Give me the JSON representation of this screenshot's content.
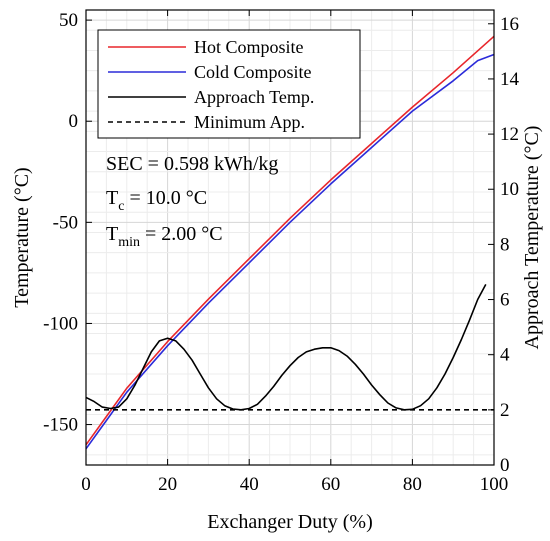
{
  "chart_data": {
    "type": "line",
    "xlabel": "Exchanger Duty (%)",
    "ylabel_left": "Temperature (°C)",
    "ylabel_right": "Approach Temperature (°C)",
    "xlim": [
      0,
      100
    ],
    "ylim_left": [
      -170,
      55
    ],
    "ylim_right": [
      0,
      16.5
    ],
    "grid": true,
    "legend_position": "top-left",
    "x_ticks": [
      0,
      20,
      40,
      60,
      80,
      100
    ],
    "y_left_ticks": [
      -150,
      -100,
      -50,
      0,
      50
    ],
    "y_right_ticks": [
      0,
      2,
      4,
      6,
      8,
      10,
      12,
      14,
      16
    ],
    "x_tick_labels": [
      "0",
      "20",
      "40",
      "60",
      "80",
      "100"
    ],
    "y_left_tick_labels": [
      "-150",
      "-100",
      "-50",
      "0",
      "50"
    ],
    "y_right_tick_labels": [
      "0",
      "2",
      "4",
      "6",
      "8",
      "10",
      "12",
      "14",
      "16"
    ],
    "annotations": {
      "sec": "SEC = 0.598 kWh/kg",
      "tc_main": "T",
      "tc_sub": "c",
      "tc_rest": " =  10.0 °C",
      "tmin_main": "T",
      "tmin_sub": "min",
      "tmin_rest": " =  2.00 °C"
    },
    "series": [
      {
        "name": "Hot Composite",
        "axis": "left",
        "color": "#e8262b",
        "style": "solid",
        "x": [
          0,
          5,
          10,
          20,
          30,
          40,
          50,
          60,
          70,
          80,
          90,
          100
        ],
        "y": [
          -160,
          -146,
          -132,
          -109,
          -88,
          -68,
          -48,
          -29,
          -11,
          7,
          24,
          42
        ]
      },
      {
        "name": "Cold Composite",
        "axis": "left",
        "color": "#2b2bd9",
        "style": "solid",
        "x": [
          0,
          5,
          10,
          20,
          30,
          40,
          50,
          60,
          70,
          80,
          90,
          96,
          100
        ],
        "y": [
          -162,
          -148,
          -134,
          -111,
          -90,
          -70,
          -50,
          -31,
          -13,
          5,
          20,
          30,
          33
        ]
      },
      {
        "name": "Approach Temp.",
        "axis": "right",
        "color": "#000000",
        "style": "solid",
        "x": [
          0,
          2,
          4,
          6,
          8,
          10,
          12,
          14,
          16,
          18,
          20,
          22,
          24,
          26,
          28,
          30,
          32,
          34,
          36,
          38,
          40,
          42,
          44,
          46,
          48,
          50,
          52,
          54,
          56,
          58,
          60,
          62,
          64,
          66,
          68,
          70,
          72,
          74,
          76,
          78,
          80,
          82,
          84,
          86,
          88,
          90,
          92,
          94,
          96,
          98
        ],
        "y": [
          2.45,
          2.3,
          2.1,
          2.05,
          2.1,
          2.4,
          2.9,
          3.5,
          4.1,
          4.5,
          4.6,
          4.5,
          4.2,
          3.8,
          3.3,
          2.8,
          2.4,
          2.15,
          2.03,
          2.0,
          2.05,
          2.2,
          2.5,
          2.85,
          3.25,
          3.6,
          3.9,
          4.1,
          4.2,
          4.25,
          4.25,
          4.15,
          3.95,
          3.65,
          3.3,
          2.9,
          2.55,
          2.25,
          2.07,
          2.0,
          2.02,
          2.15,
          2.4,
          2.8,
          3.3,
          3.9,
          4.55,
          5.25,
          6.0,
          6.55
        ]
      },
      {
        "name": "Minimum App.",
        "axis": "right",
        "color": "#000000",
        "style": "dashed",
        "x": [
          0,
          100
        ],
        "y": [
          2.0,
          2.0
        ]
      }
    ]
  }
}
